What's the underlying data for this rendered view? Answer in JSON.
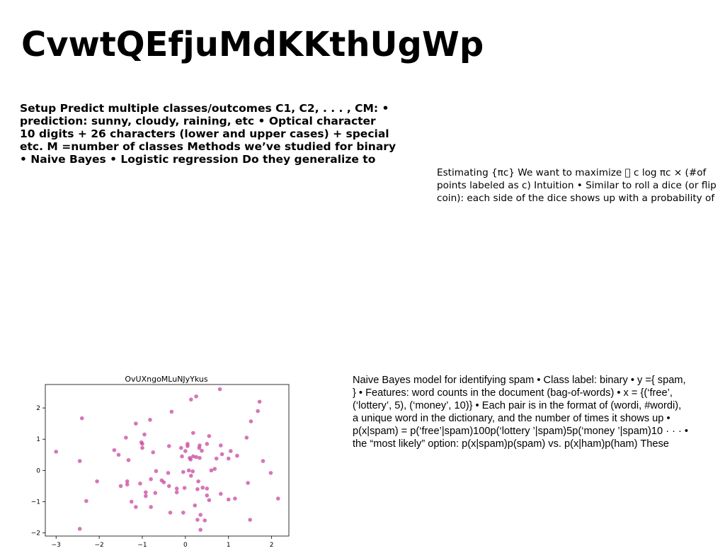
{
  "title": "CvwtQEfjuMdKKthUgWp",
  "block1": {
    "lines": [
      "Setup Predict multiple classes/outcomes C1, C2, . . . , CM: •",
      "prediction: sunny, cloudy, raining, etc • Optical character",
      "10 digits + 26 characters (lower and upper cases) + special",
      "etc. M =number of classes Methods we’ve studied for binary",
      "• Naive Bayes • Logistic regression Do they generalize to"
    ]
  },
  "block2": {
    "lines": [
      "Estimating {πc} We want to maximize ￿ c log πc × (#of",
      "points labeled as c) Intuition • Similar to roll a dice (or flip",
      "coin): each side of the dice shows up with a probability of"
    ]
  },
  "block3": {
    "lines": [
      "Naive Bayes model for identifying spam • Class label: binary • y ={ spam,",
      "} • Features: word counts in the document (bag-of-words) • x = {(‘free’,",
      "(‘lottery’, 5), (‘money’, 10)} • Each pair is in the format of (wordi, #wordi),",
      "a unique word in the dictionary, and the number of times it shows up •",
      "p(x|spam) = p(‘free’|spam)100p(‘lottery ’|spam)5p(‘money ’|spam)10 · · · •",
      "the “most likely” option: p(x|spam)p(spam) vs. p(x|ham)p(ham) These"
    ]
  },
  "chart_data": {
    "type": "scatter",
    "title": "OvUXngoMLuNJyYkus",
    "xlabel": "",
    "ylabel": "",
    "xlim": [
      -3.25,
      2.4
    ],
    "ylim": [
      -2.1,
      2.75
    ],
    "xticks": [
      -3,
      -2,
      -1,
      0,
      1,
      2
    ],
    "yticks": [
      -2,
      -1,
      0,
      1,
      2
    ],
    "color": "#c9479e",
    "grid": false,
    "points": [
      [
        -3.0,
        0.6
      ],
      [
        -2.4,
        1.67
      ],
      [
        -2.45,
        0.3
      ],
      [
        -2.45,
        -1.87
      ],
      [
        -2.3,
        -0.98
      ],
      [
        -2.05,
        -0.35
      ],
      [
        -1.65,
        0.65
      ],
      [
        -1.55,
        0.5
      ],
      [
        -1.5,
        -0.5
      ],
      [
        -1.38,
        1.05
      ],
      [
        -1.35,
        -0.35
      ],
      [
        -1.35,
        -0.45
      ],
      [
        -1.32,
        0.33
      ],
      [
        -1.25,
        -1.0
      ],
      [
        -1.15,
        1.5
      ],
      [
        -1.15,
        -1.17
      ],
      [
        -1.05,
        -0.42
      ],
      [
        -1.02,
        0.9
      ],
      [
        -1.0,
        0.72
      ],
      [
        -1.0,
        0.85
      ],
      [
        -0.95,
        1.15
      ],
      [
        -0.92,
        -0.7
      ],
      [
        -0.92,
        -0.82
      ],
      [
        -0.8,
        -0.28
      ],
      [
        -0.8,
        -1.17
      ],
      [
        -0.82,
        1.62
      ],
      [
        -0.75,
        0.58
      ],
      [
        -0.7,
        -0.72
      ],
      [
        -0.68,
        -0.02
      ],
      [
        -0.55,
        -0.32
      ],
      [
        -0.5,
        -0.38
      ],
      [
        -0.4,
        -0.08
      ],
      [
        -0.38,
        0.78
      ],
      [
        -0.38,
        -0.5
      ],
      [
        -0.35,
        -1.35
      ],
      [
        -0.32,
        1.88
      ],
      [
        -0.2,
        -0.58
      ],
      [
        -0.2,
        -0.7
      ],
      [
        -0.1,
        0.72
      ],
      [
        -0.08,
        0.45
      ],
      [
        -0.05,
        -0.05
      ],
      [
        -0.05,
        -1.35
      ],
      [
        -0.02,
        -0.56
      ],
      [
        0.0,
        0.62
      ],
      [
        0.05,
        0.85
      ],
      [
        0.05,
        0.78
      ],
      [
        0.08,
        0.0
      ],
      [
        0.1,
        0.4
      ],
      [
        0.12,
        0.35
      ],
      [
        0.13,
        2.27
      ],
      [
        0.13,
        -0.17
      ],
      [
        0.17,
        -0.03
      ],
      [
        0.18,
        0.45
      ],
      [
        0.18,
        1.2
      ],
      [
        0.22,
        -1.12
      ],
      [
        0.25,
        2.37
      ],
      [
        0.25,
        0.43
      ],
      [
        0.28,
        -1.58
      ],
      [
        0.28,
        -0.6
      ],
      [
        0.3,
        -0.35
      ],
      [
        0.32,
        0.72
      ],
      [
        0.33,
        0.8
      ],
      [
        0.33,
        0.4
      ],
      [
        0.35,
        -1.9
      ],
      [
        0.35,
        -1.42
      ],
      [
        0.38,
        0.63
      ],
      [
        0.4,
        -0.55
      ],
      [
        0.45,
        -1.6
      ],
      [
        0.5,
        -0.58
      ],
      [
        0.5,
        -0.8
      ],
      [
        0.5,
        0.85
      ],
      [
        0.55,
        1.1
      ],
      [
        0.55,
        -0.95
      ],
      [
        0.6,
        0.0
      ],
      [
        0.68,
        0.05
      ],
      [
        0.72,
        0.38
      ],
      [
        0.8,
        2.6
      ],
      [
        0.82,
        0.8
      ],
      [
        0.82,
        -0.75
      ],
      [
        0.85,
        0.52
      ],
      [
        1.0,
        0.38
      ],
      [
        1.0,
        -0.93
      ],
      [
        1.05,
        0.62
      ],
      [
        1.15,
        -0.9
      ],
      [
        1.2,
        0.47
      ],
      [
        1.42,
        1.05
      ],
      [
        1.45,
        -0.4
      ],
      [
        1.5,
        -1.58
      ],
      [
        1.52,
        1.57
      ],
      [
        1.68,
        1.9
      ],
      [
        1.72,
        2.2
      ],
      [
        1.8,
        0.3
      ],
      [
        1.98,
        -0.08
      ],
      [
        2.15,
        -0.9
      ]
    ]
  }
}
